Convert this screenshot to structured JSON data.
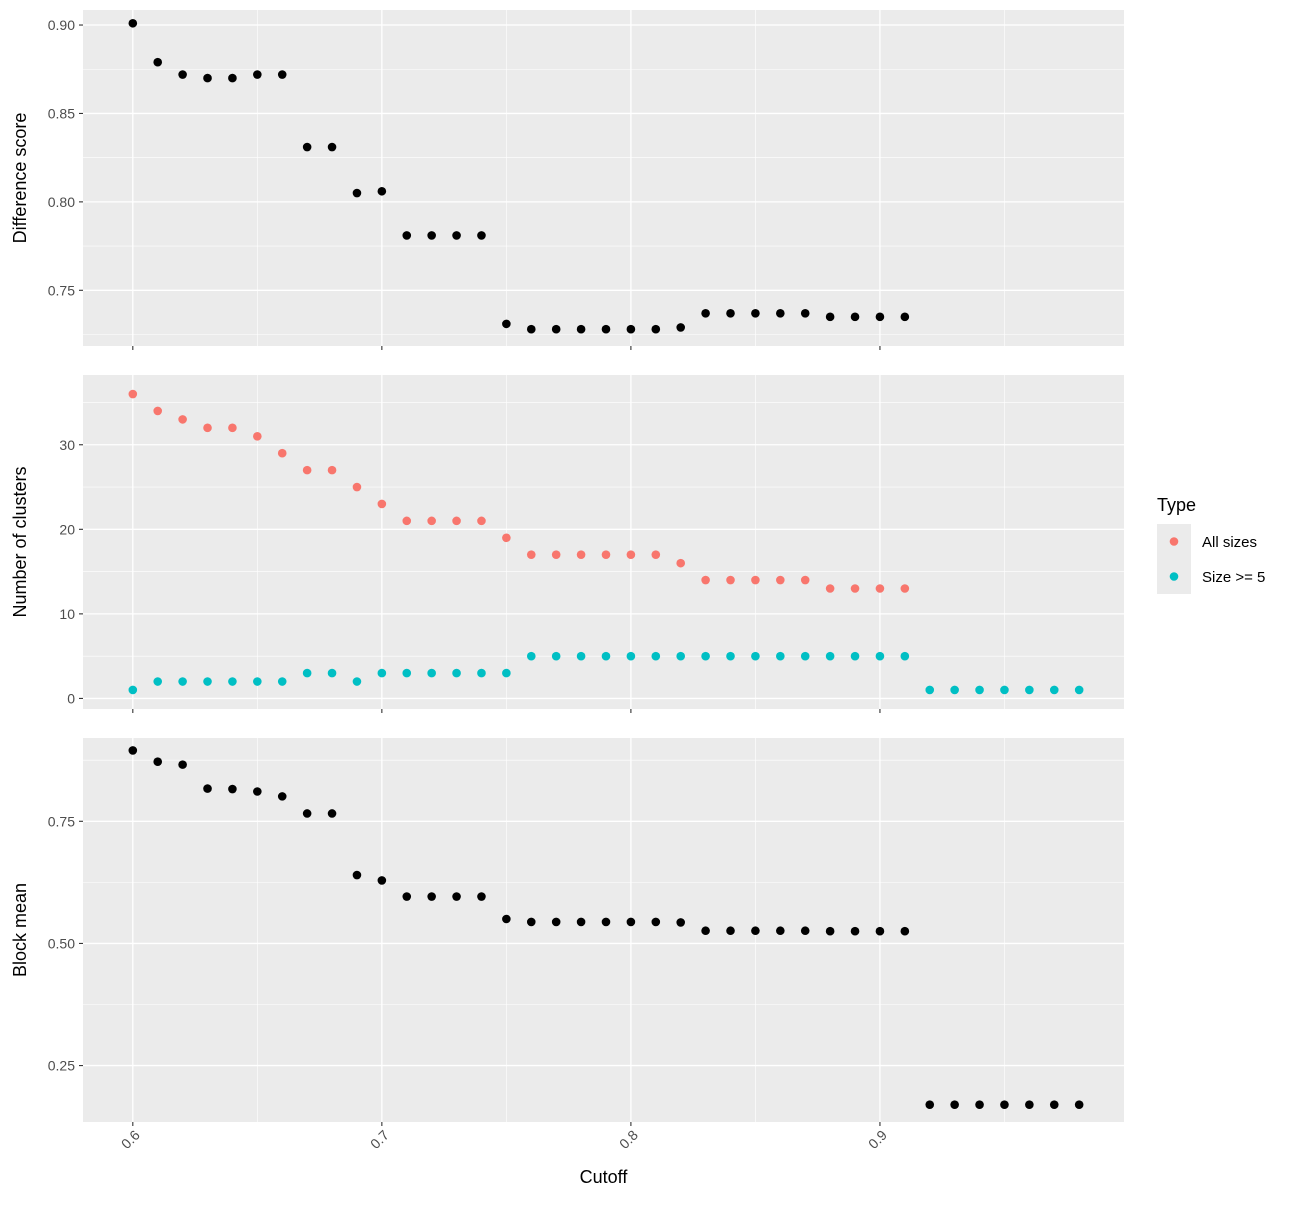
{
  "colors": {
    "panel_bg": "#EBEBEB",
    "grid": "#FFFFFF",
    "text_dark": "#000000",
    "text_tick": "#4D4D4D",
    "point_default": "#000000",
    "all_sizes": "#F8766D",
    "size_ge_5": "#00BFC4"
  },
  "chart_data": [
    {
      "type": "scatter",
      "ylabel": "Difference score",
      "xlim": [
        0.58,
        0.998
      ],
      "ylim": [
        0.7185,
        0.9085
      ],
      "y_ticks": [
        0.75,
        0.8,
        0.85,
        0.9
      ],
      "y_tick_labels": [
        "0.75",
        "0.80",
        "0.85",
        "0.90"
      ],
      "grid": true,
      "series": [
        {
          "color_key": "point_default",
          "x": [
            0.6,
            0.61,
            0.62,
            0.63,
            0.64,
            0.65,
            0.66,
            0.67,
            0.68,
            0.69,
            0.7,
            0.71,
            0.72,
            0.73,
            0.74,
            0.75,
            0.76,
            0.77,
            0.78,
            0.79,
            0.8,
            0.81,
            0.82,
            0.83,
            0.84,
            0.85,
            0.86,
            0.87,
            0.88,
            0.89,
            0.9,
            0.91
          ],
          "y": [
            0.901,
            0.879,
            0.872,
            0.87,
            0.87,
            0.872,
            0.872,
            0.831,
            0.831,
            0.805,
            0.806,
            0.781,
            0.781,
            0.781,
            0.781,
            0.731,
            0.728,
            0.728,
            0.728,
            0.728,
            0.728,
            0.728,
            0.729,
            0.737,
            0.737,
            0.737,
            0.737,
            0.737,
            0.735,
            0.735,
            0.735,
            0.735
          ]
        }
      ]
    },
    {
      "type": "scatter",
      "ylabel": "Number of clusters",
      "xlim": [
        0.58,
        0.998
      ],
      "ylim": [
        -1.25,
        38.25
      ],
      "y_ticks": [
        0,
        10,
        20,
        30
      ],
      "y_tick_labels": [
        "0",
        "10",
        "20",
        "30"
      ],
      "grid": true,
      "legend": {
        "title": "Type",
        "placement": "right",
        "entries": [
          "All sizes",
          "Size >= 5"
        ]
      },
      "series": [
        {
          "name": "All sizes",
          "color_key": "all_sizes",
          "x": [
            0.6,
            0.61,
            0.62,
            0.63,
            0.64,
            0.65,
            0.66,
            0.67,
            0.68,
            0.69,
            0.7,
            0.71,
            0.72,
            0.73,
            0.74,
            0.75,
            0.76,
            0.77,
            0.78,
            0.79,
            0.8,
            0.81,
            0.82,
            0.83,
            0.84,
            0.85,
            0.86,
            0.87,
            0.88,
            0.89,
            0.9,
            0.91
          ],
          "y": [
            36,
            34,
            33,
            32,
            32,
            31,
            29,
            27,
            27,
            25,
            23,
            21,
            21,
            21,
            21,
            19,
            17,
            17,
            17,
            17,
            17,
            17,
            16,
            14,
            14,
            14,
            14,
            14,
            13,
            13,
            13,
            13
          ]
        },
        {
          "name": "Size >= 5",
          "color_key": "size_ge_5",
          "x": [
            0.6,
            0.61,
            0.62,
            0.63,
            0.64,
            0.65,
            0.66,
            0.67,
            0.68,
            0.69,
            0.7,
            0.71,
            0.72,
            0.73,
            0.74,
            0.75,
            0.76,
            0.77,
            0.78,
            0.79,
            0.8,
            0.81,
            0.82,
            0.83,
            0.84,
            0.85,
            0.86,
            0.87,
            0.88,
            0.89,
            0.9,
            0.91,
            0.92,
            0.93,
            0.94,
            0.95,
            0.96,
            0.97,
            0.98
          ],
          "y": [
            1,
            2,
            2,
            2,
            2,
            2,
            2,
            3,
            3,
            2,
            3,
            3,
            3,
            3,
            3,
            3,
            5,
            5,
            5,
            5,
            5,
            5,
            5,
            5,
            5,
            5,
            5,
            5,
            5,
            5,
            5,
            5,
            1,
            1,
            1,
            1,
            1,
            1,
            1
          ]
        }
      ]
    },
    {
      "type": "scatter",
      "ylabel": "Block mean",
      "xlabel": "Cutoff",
      "xlim": [
        0.58,
        0.998
      ],
      "ylim": [
        0.1345,
        0.9205
      ],
      "y_ticks": [
        0.25,
        0.5,
        0.75
      ],
      "y_tick_labels": [
        "0.25",
        "0.50",
        "0.75"
      ],
      "x_ticks": [
        0.6,
        0.7,
        0.8,
        0.9
      ],
      "x_tick_labels": [
        "0.6",
        "0.7",
        "0.8",
        "0.9"
      ],
      "grid": true,
      "series": [
        {
          "color_key": "point_default",
          "x": [
            0.6,
            0.61,
            0.62,
            0.63,
            0.64,
            0.65,
            0.66,
            0.67,
            0.68,
            0.69,
            0.7,
            0.71,
            0.72,
            0.73,
            0.74,
            0.75,
            0.76,
            0.77,
            0.78,
            0.79,
            0.8,
            0.81,
            0.82,
            0.83,
            0.84,
            0.85,
            0.86,
            0.87,
            0.88,
            0.89,
            0.9,
            0.91,
            0.92,
            0.93,
            0.94,
            0.95,
            0.96,
            0.97,
            0.98
          ],
          "y": [
            0.895,
            0.872,
            0.866,
            0.817,
            0.816,
            0.811,
            0.801,
            0.766,
            0.766,
            0.64,
            0.629,
            0.596,
            0.596,
            0.596,
            0.596,
            0.55,
            0.544,
            0.544,
            0.544,
            0.544,
            0.544,
            0.544,
            0.543,
            0.526,
            0.526,
            0.526,
            0.526,
            0.526,
            0.525,
            0.525,
            0.525,
            0.525,
            0.17,
            0.17,
            0.17,
            0.17,
            0.17,
            0.17,
            0.17
          ]
        }
      ]
    }
  ]
}
